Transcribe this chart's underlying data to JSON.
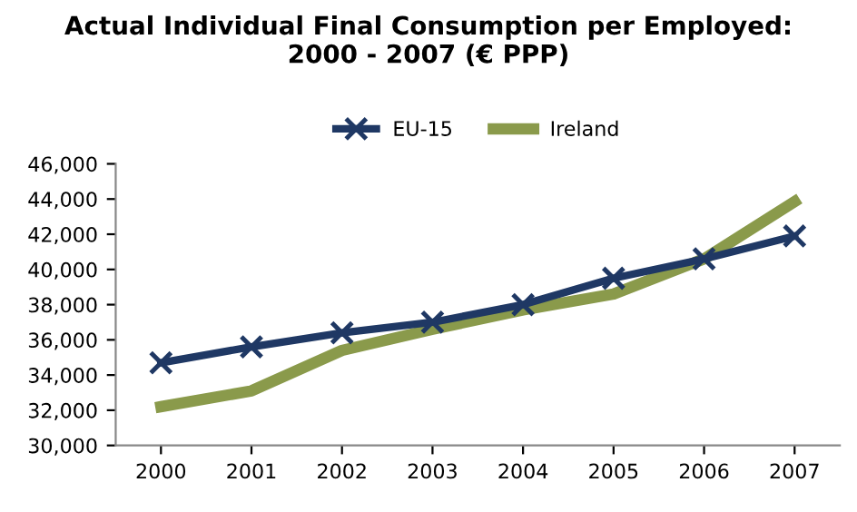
{
  "chart_data": {
    "type": "line",
    "title": "Actual Individual Final Consumption per Employed:\n2000 - 2007 (€ PPP)",
    "categories": [
      "2000",
      "2001",
      "2002",
      "2003",
      "2004",
      "2005",
      "2006",
      "2007"
    ],
    "series": [
      {
        "name": "EU-15",
        "color": "#1f3864",
        "marker": "cross",
        "values": [
          34700,
          35600,
          36400,
          37000,
          38000,
          39500,
          40600,
          41900
        ]
      },
      {
        "name": "Ireland",
        "color": "#8a9a4b",
        "marker": "none",
        "values": [
          32200,
          33100,
          35400,
          36600,
          37700,
          38600,
          40600,
          43850
        ]
      }
    ],
    "ylim": [
      30000,
      46000
    ],
    "yticks": [
      {
        "value": 30000,
        "label": "30,000"
      },
      {
        "value": 32000,
        "label": "32,000"
      },
      {
        "value": 34000,
        "label": "34,000"
      },
      {
        "value": 36000,
        "label": "36,000"
      },
      {
        "value": 38000,
        "label": "38,000"
      },
      {
        "value": 40000,
        "label": "40,000"
      },
      {
        "value": 42000,
        "label": "42,000"
      },
      {
        "value": 44000,
        "label": "44,000"
      },
      {
        "value": 46000,
        "label": "46,000"
      }
    ],
    "legend": "top",
    "grid": false
  }
}
